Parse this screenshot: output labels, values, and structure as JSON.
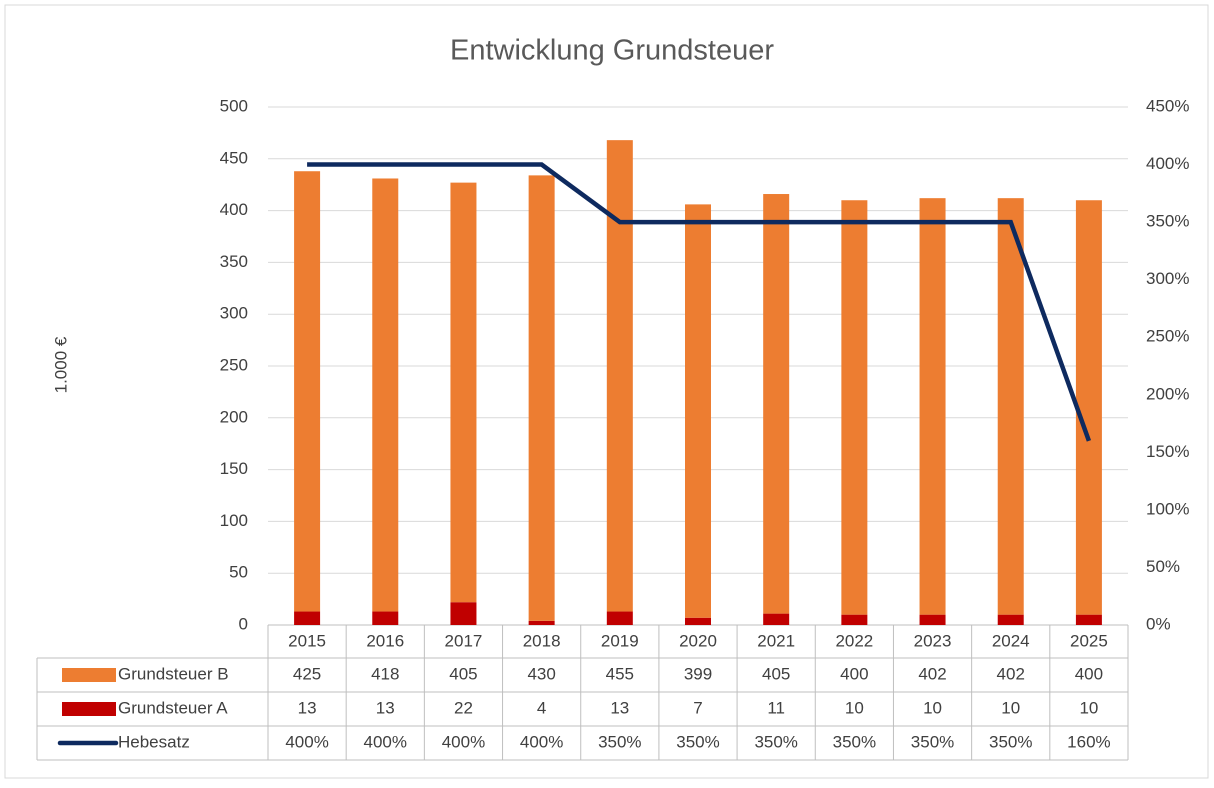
{
  "chart_data": {
    "type": "bar",
    "stacked": true,
    "title": "Entwicklung  Grundsteuer",
    "y_label": "1.000 €",
    "categories": [
      "2015",
      "2016",
      "2017",
      "2018",
      "2019",
      "2020",
      "2021",
      "2022",
      "2023",
      "2024",
      "2025"
    ],
    "series": [
      {
        "name": "Grundsteuer B",
        "type": "bar",
        "color": "#ed7d31",
        "values": [
          425,
          418,
          405,
          430,
          455,
          399,
          405,
          400,
          402,
          402,
          400
        ]
      },
      {
        "name": "Grundsteuer A",
        "type": "bar",
        "color": "#c00000",
        "values": [
          13,
          13,
          22,
          4,
          13,
          7,
          11,
          10,
          10,
          10,
          10
        ]
      },
      {
        "name": "Hebesatz",
        "type": "line",
        "axis": "y2",
        "color": "#0e2a5f",
        "values": [
          400,
          400,
          400,
          400,
          350,
          350,
          350,
          350,
          350,
          350,
          160
        ],
        "value_labels": [
          "400%",
          "400%",
          "400%",
          "400%",
          "350%",
          "350%",
          "350%",
          "350%",
          "350%",
          "350%",
          "160%"
        ]
      }
    ],
    "ylim": [
      0,
      500
    ],
    "yticks": [
      0,
      50,
      100,
      150,
      200,
      250,
      300,
      350,
      400,
      450,
      500
    ],
    "y2lim": [
      0,
      450
    ],
    "y2ticks": [
      {
        "value": 0,
        "label": "0%"
      },
      {
        "value": 50,
        "label": "50%"
      },
      {
        "value": 100,
        "label": "100%"
      },
      {
        "value": 150,
        "label": "150%"
      },
      {
        "value": 200,
        "label": "200%"
      },
      {
        "value": 250,
        "label": "250%"
      },
      {
        "value": 300,
        "label": "300%"
      },
      {
        "value": 350,
        "label": "350%"
      },
      {
        "value": 400,
        "label": "400%"
      },
      {
        "value": 450,
        "label": "450%"
      }
    ],
    "grid": true,
    "data_table": true
  }
}
